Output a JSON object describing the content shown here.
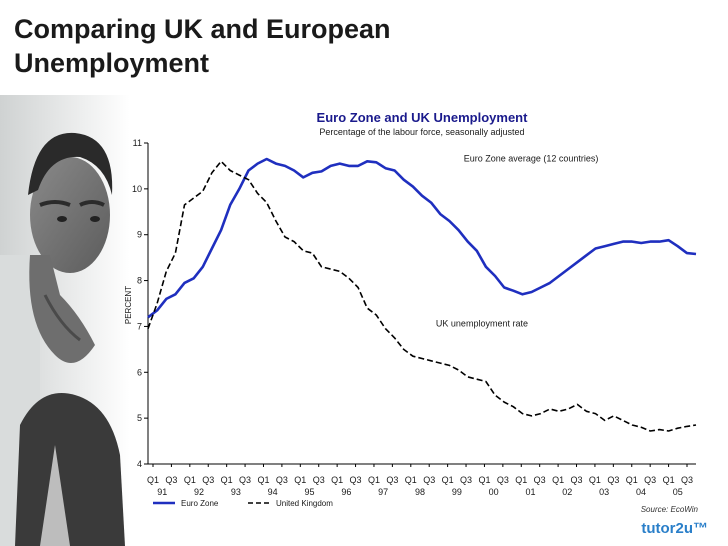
{
  "slide": {
    "title_line1": "Comparing UK and European",
    "title_line2": "Unemployment",
    "source": "Source: EcoWin",
    "brand": "tutor2u™"
  },
  "chart_data": {
    "type": "line",
    "title": "Euro Zone and UK Unemployment",
    "subtitle": "Percentage of the labour force, seasonally adjusted",
    "ylabel": "PERCENT",
    "xlabel": "",
    "ylim": [
      4,
      11
    ],
    "yticks": [
      4,
      5,
      6,
      7,
      8,
      9,
      10,
      11
    ],
    "xlim": [
      0,
      59
    ],
    "x_quarter_labels": [
      "Q1",
      "Q3",
      "Q1",
      "Q3",
      "Q1",
      "Q3",
      "Q1",
      "Q3",
      "Q1",
      "Q3",
      "Q1",
      "Q3",
      "Q1",
      "Q3",
      "Q1",
      "Q3",
      "Q1",
      "Q3",
      "Q1",
      "Q3",
      "Q1",
      "Q3",
      "Q1",
      "Q3",
      "Q1",
      "Q3",
      "Q1",
      "Q3",
      "Q1",
      "Q3"
    ],
    "x_year_labels": [
      "91",
      "92",
      "93",
      "94",
      "95",
      "96",
      "97",
      "98",
      "99",
      "00",
      "01",
      "02",
      "03",
      "04",
      "05"
    ],
    "grid": false,
    "legend_placement": "bottom-left",
    "annotations": [
      {
        "text": "Euro Zone average (12 countries)",
        "x": 34,
        "y": 10.6
      },
      {
        "text": "UK unemployment rate",
        "x": 31,
        "y": 7.0
      }
    ],
    "series": [
      {
        "name": "Euro Zone",
        "color": "#1f2fbf",
        "style": "solid",
        "values": [
          7.2,
          7.35,
          7.6,
          7.7,
          7.95,
          8.05,
          8.3,
          8.7,
          9.1,
          9.65,
          10.0,
          10.4,
          10.55,
          10.65,
          10.55,
          10.5,
          10.4,
          10.25,
          10.35,
          10.38,
          10.5,
          10.55,
          10.5,
          10.5,
          10.6,
          10.58,
          10.45,
          10.4,
          10.2,
          10.05,
          9.85,
          9.7,
          9.45,
          9.3,
          9.1,
          8.85,
          8.65,
          8.3,
          8.1,
          7.85,
          7.78,
          7.7,
          7.75,
          7.85,
          7.95,
          8.1,
          8.25,
          8.4,
          8.55,
          8.7,
          8.75,
          8.8,
          8.85,
          8.85,
          8.82,
          8.85,
          8.85,
          8.88,
          8.75,
          8.6,
          8.58
        ]
      },
      {
        "name": "United Kingdom",
        "color": "#000000",
        "style": "dashed",
        "values": [
          6.95,
          7.5,
          8.2,
          8.6,
          9.65,
          9.8,
          9.95,
          10.35,
          10.6,
          10.4,
          10.3,
          10.2,
          9.9,
          9.7,
          9.3,
          8.95,
          8.85,
          8.65,
          8.6,
          8.3,
          8.25,
          8.2,
          8.05,
          7.85,
          7.4,
          7.25,
          6.95,
          6.75,
          6.5,
          6.35,
          6.3,
          6.25,
          6.2,
          6.15,
          6.05,
          5.9,
          5.85,
          5.8,
          5.5,
          5.35,
          5.25,
          5.1,
          5.05,
          5.1,
          5.2,
          5.15,
          5.2,
          5.3,
          5.15,
          5.1,
          4.95,
          5.05,
          4.95,
          4.85,
          4.8,
          4.72,
          4.75,
          4.72,
          4.78,
          4.82,
          4.85
        ]
      }
    ]
  }
}
